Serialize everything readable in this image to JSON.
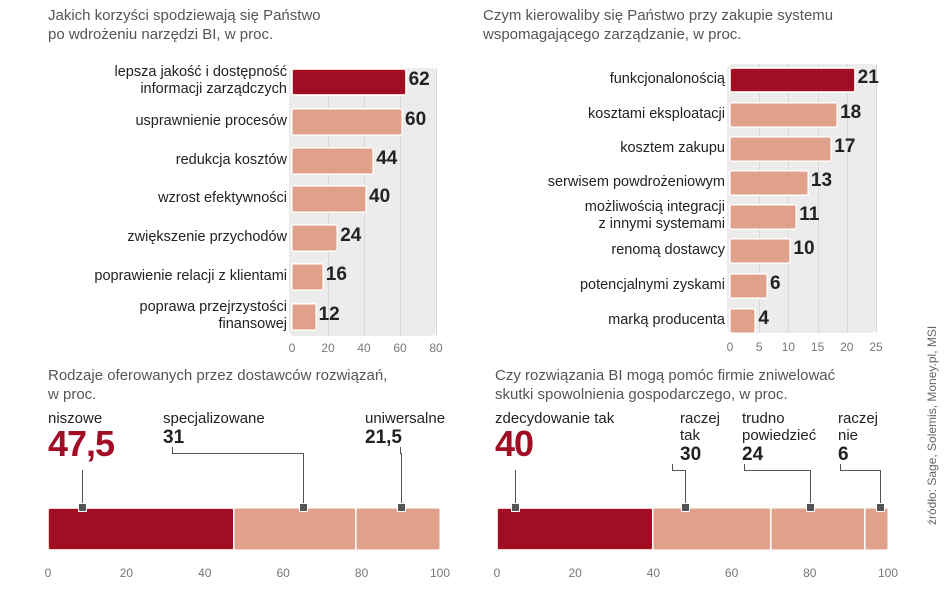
{
  "colors": {
    "highlight": "#a10d25",
    "bar": "#dfa18b",
    "panel": "#ececec"
  },
  "source": "źródło: Sage, Solemis, Money.pl, MSI",
  "chart_data": [
    {
      "type": "bar",
      "orientation": "horizontal",
      "title": [
        "Jakich korzyści spodziewają się Państwo",
        "po wdrożeniu narzędzi BI, w proc."
      ],
      "categories": [
        "lepsza jakość i dostępność\ninformacji zarządczych",
        "usprawnienie procesów",
        "redukcja kosztów",
        "wzrost efektywności",
        "zwiększenie przychodów",
        "poprawienie relacji z klientami",
        "poprawa przejrzystości\nfinansowej"
      ],
      "values": [
        62,
        60,
        44,
        40,
        24,
        16,
        12
      ],
      "highlight_index": 0,
      "xlim": [
        0,
        80
      ],
      "xticks": [
        "0",
        "20",
        "40",
        "60",
        "80"
      ],
      "grid": true
    },
    {
      "type": "bar",
      "orientation": "horizontal",
      "title": [
        "Czym kierowaliby się Państwo przy zakupie systemu",
        "wspomagającego zarządzanie, w proc."
      ],
      "categories": [
        "funkcjonalonością",
        "kosztami eksploatacji",
        "kosztem zakupu",
        "serwisem powdrożeniowym",
        "możliwością integracji\nz innymi systemami",
        "renomą dostawcy",
        "potencjalnymi zyskami",
        "marką producenta"
      ],
      "values": [
        21,
        18,
        17,
        13,
        11,
        10,
        6,
        4
      ],
      "highlight_index": 0,
      "xlim": [
        0,
        25
      ],
      "xticks": [
        "0",
        "5",
        "10",
        "15",
        "20",
        "25"
      ],
      "grid": true
    },
    {
      "type": "bar",
      "orientation": "stacked-horizontal",
      "title": [
        "Rodzaje oferowanych przez dostawców rozwiązań,",
        "w proc."
      ],
      "categories": [
        "niszowe",
        "specjalizowane",
        "uniwersalne"
      ],
      "labels": [
        "47,5",
        "31",
        "21,5"
      ],
      "values": [
        47.5,
        31,
        21.5
      ],
      "highlight_index": 0,
      "xlim": [
        0,
        100
      ],
      "xticks": [
        "0",
        "20",
        "40",
        "60",
        "80",
        "100"
      ]
    },
    {
      "type": "bar",
      "orientation": "stacked-horizontal",
      "title": [
        "Czy rozwiązania BI mogą pomóc firmie zniwelować",
        "skutki spowolnienia gospodarczego, w proc."
      ],
      "categories": [
        "zdecydowanie tak",
        "raczej\ntak",
        "trudno\npowiedzieć",
        "raczej\nnie"
      ],
      "labels": [
        "40",
        "30",
        "24",
        "6"
      ],
      "values": [
        40,
        30,
        24,
        6
      ],
      "highlight_index": 0,
      "xlim": [
        0,
        100
      ],
      "xticks": [
        "0",
        "20",
        "40",
        "60",
        "80",
        "100"
      ]
    }
  ]
}
